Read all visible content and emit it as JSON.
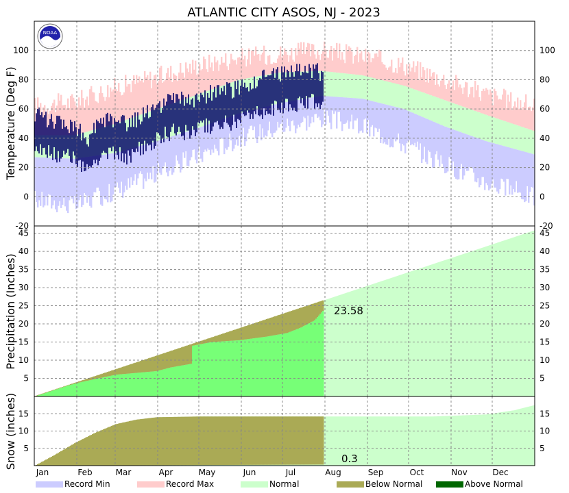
{
  "chart_data": {
    "type": "climate-summary",
    "title": "ATLANTIC CITY  ASOS, NJ - 2023",
    "logo_text": "NOAA",
    "months": [
      "Jan",
      "Feb",
      "Mar",
      "Apr",
      "May",
      "Jun",
      "Jul",
      "Aug",
      "Sep",
      "Oct",
      "Nov",
      "Dec"
    ],
    "colors": {
      "record_min": "#ccccff",
      "record_max": "#ffcccc",
      "normal": "#ccffcc",
      "below_normal": "#aaaa55",
      "above_normal": "#006600",
      "observed_precip": "#77ff77",
      "observed_temp": "#000066",
      "grid": "#888888"
    },
    "legend": [
      {
        "key": "record_min",
        "label": "Record Min"
      },
      {
        "key": "record_max",
        "label": "Record Max"
      },
      {
        "key": "normal",
        "label": "Normal"
      },
      {
        "key": "below_normal",
        "label": "Below Normal"
      },
      {
        "key": "above_normal",
        "label": "Above Normal"
      }
    ],
    "temperature": {
      "ylabel": "Temperature (Deg F)",
      "ylim": [
        -20,
        120
      ],
      "ticks": [
        -20,
        0,
        20,
        40,
        60,
        80,
        100
      ],
      "normal_high_anchors": [
        [
          1,
          42
        ],
        [
          30,
          42
        ],
        [
          60,
          50
        ],
        [
          90,
          60
        ],
        [
          120,
          70
        ],
        [
          150,
          80
        ],
        [
          180,
          85
        ],
        [
          210,
          86
        ],
        [
          240,
          83
        ],
        [
          270,
          76
        ],
        [
          300,
          66
        ],
        [
          330,
          56
        ],
        [
          365,
          45
        ]
      ],
      "normal_low_anchors": [
        [
          1,
          27
        ],
        [
          30,
          26
        ],
        [
          60,
          30
        ],
        [
          90,
          38
        ],
        [
          120,
          47
        ],
        [
          150,
          57
        ],
        [
          180,
          64
        ],
        [
          210,
          69
        ],
        [
          240,
          67
        ],
        [
          270,
          60
        ],
        [
          300,
          48
        ],
        [
          330,
          38
        ],
        [
          365,
          29
        ]
      ],
      "record_high_anchors": [
        [
          1,
          62
        ],
        [
          30,
          65
        ],
        [
          60,
          75
        ],
        [
          90,
          82
        ],
        [
          120,
          90
        ],
        [
          150,
          95
        ],
        [
          180,
          98
        ],
        [
          210,
          100
        ],
        [
          240,
          96
        ],
        [
          270,
          90
        ],
        [
          300,
          80
        ],
        [
          330,
          70
        ],
        [
          365,
          62
        ]
      ],
      "record_low_anchors": [
        [
          1,
          -2
        ],
        [
          30,
          -6
        ],
        [
          60,
          4
        ],
        [
          90,
          16
        ],
        [
          120,
          28
        ],
        [
          150,
          40
        ],
        [
          180,
          48
        ],
        [
          210,
          54
        ],
        [
          240,
          48
        ],
        [
          270,
          36
        ],
        [
          300,
          22
        ],
        [
          330,
          10
        ],
        [
          365,
          0
        ]
      ],
      "observed_through_day": 211,
      "observed_anchors": [
        [
          1,
          45
        ],
        [
          15,
          40
        ],
        [
          30,
          38
        ],
        [
          40,
          28
        ],
        [
          50,
          42
        ],
        [
          70,
          38
        ],
        [
          85,
          48
        ],
        [
          100,
          55
        ],
        [
          115,
          55
        ],
        [
          130,
          60
        ],
        [
          145,
          62
        ],
        [
          160,
          68
        ],
        [
          175,
          72
        ],
        [
          190,
          75
        ],
        [
          205,
          76
        ],
        [
          211,
          72
        ]
      ]
    },
    "precipitation": {
      "ylabel": "Precipitation (Inches)",
      "ylim": [
        0,
        47
      ],
      "ticks": [
        5,
        10,
        15,
        20,
        25,
        30,
        35,
        40,
        45
      ],
      "normal_total": 45.8,
      "observed_anchors": [
        [
          1,
          0
        ],
        [
          25,
          3
        ],
        [
          35,
          4
        ],
        [
          60,
          6
        ],
        [
          90,
          7
        ],
        [
          100,
          8
        ],
        [
          115,
          9
        ],
        [
          116,
          14
        ],
        [
          130,
          15
        ],
        [
          150,
          15.5
        ],
        [
          170,
          16.5
        ],
        [
          185,
          17.5
        ],
        [
          195,
          19
        ],
        [
          205,
          21
        ],
        [
          211,
          23.58
        ]
      ],
      "observed_through_day": 211,
      "observed_total_label": "23.58"
    },
    "snow": {
      "ylabel": "Snow (inches)",
      "ylim": [
        0,
        20
      ],
      "ticks": [
        5,
        10,
        15
      ],
      "normal_anchors": [
        [
          1,
          0
        ],
        [
          15,
          3
        ],
        [
          30,
          6.5
        ],
        [
          45,
          9.5
        ],
        [
          60,
          12
        ],
        [
          75,
          13.3
        ],
        [
          90,
          14
        ],
        [
          120,
          14.2
        ],
        [
          211,
          14.2
        ],
        [
          290,
          14.2
        ],
        [
          330,
          14.8
        ],
        [
          350,
          16
        ],
        [
          365,
          17.5
        ]
      ],
      "observed_anchors": [
        [
          1,
          0
        ],
        [
          211,
          0.3
        ]
      ],
      "observed_through_day": 211,
      "observed_total_label": "0.3"
    }
  }
}
